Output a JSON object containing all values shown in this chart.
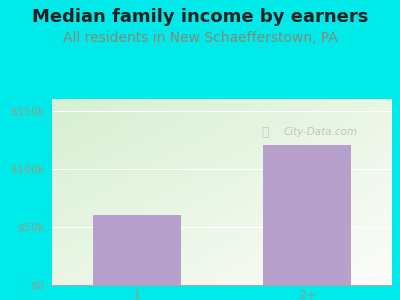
{
  "title": "Median family income by earners",
  "subtitle": "All residents in New Schaefferstown, PA",
  "categories": [
    "1",
    "2+"
  ],
  "values": [
    60000,
    120000
  ],
  "bar_color": "#b8a0cc",
  "yticks": [
    0,
    50000,
    100000,
    150000
  ],
  "ytick_labels": [
    "$0",
    "$50k",
    "$100k",
    "$150k"
  ],
  "ylim": [
    0,
    160000
  ],
  "outer_bg": "#00eaea",
  "title_fontsize": 13,
  "subtitle_fontsize": 10,
  "subtitle_color": "#888877",
  "title_color": "#222222",
  "tick_color": "#999988",
  "watermark": "City-Data.com",
  "watermark_color": "#bbbbbb",
  "grid_color": "#ddddcc"
}
